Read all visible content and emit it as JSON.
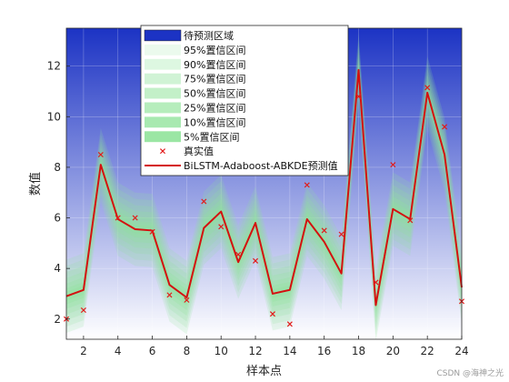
{
  "chart_data": {
    "type": "line",
    "x": [
      1,
      2,
      3,
      4,
      5,
      6,
      7,
      8,
      9,
      10,
      11,
      12,
      13,
      14,
      15,
      16,
      17,
      18,
      19,
      20,
      21,
      22,
      23,
      24
    ],
    "xlim": [
      1,
      24
    ],
    "ylim": [
      1.2,
      13.5
    ],
    "xticks": [
      2,
      4,
      6,
      8,
      10,
      12,
      14,
      16,
      18,
      20,
      22,
      24
    ],
    "yticks": [
      2,
      4,
      6,
      8,
      10,
      12
    ],
    "xlabel": "样本点",
    "ylabel": "数值",
    "legend_position": "top-center",
    "region_label": "待预测区域",
    "region_colors": {
      "top": "#1c33c4",
      "bottom": "#ffffff"
    },
    "band_color": "#90e39a",
    "intervals": [
      {
        "name": "95%置信区间",
        "half_width": 1.45,
        "opacity": 0.18
      },
      {
        "name": "90%置信区间",
        "half_width": 1.2,
        "opacity": 0.18
      },
      {
        "name": "75%置信区间",
        "half_width": 0.95,
        "opacity": 0.2
      },
      {
        "name": "50%置信区间",
        "half_width": 0.72,
        "opacity": 0.22
      },
      {
        "name": "25%置信区间",
        "half_width": 0.5,
        "opacity": 0.25
      },
      {
        "name": "10%置信区间",
        "half_width": 0.32,
        "opacity": 0.28
      },
      {
        "name": "5%置信区间",
        "half_width": 0.18,
        "opacity": 0.32
      }
    ],
    "series": [
      {
        "name": "真实值",
        "marker": "x",
        "color": "#e21a1a",
        "values": [
          2.0,
          2.35,
          8.5,
          6.0,
          6.0,
          5.45,
          2.95,
          2.75,
          6.65,
          5.65,
          4.55,
          4.3,
          2.2,
          1.8,
          7.3,
          5.5,
          5.35,
          10.8,
          3.45,
          8.1,
          5.9,
          11.15,
          9.6,
          2.7
        ]
      },
      {
        "name": "BiLSTM-Adaboost-ABKDE预测值",
        "color": "#d41010",
        "values": [
          2.9,
          3.15,
          8.1,
          5.95,
          5.55,
          5.5,
          3.35,
          2.85,
          5.6,
          6.25,
          4.25,
          5.8,
          3.0,
          3.15,
          5.95,
          5.05,
          3.8,
          11.85,
          2.55,
          6.35,
          5.95,
          10.95,
          8.5,
          3.25
        ]
      }
    ]
  },
  "watermark": "CSDN @海神之光"
}
